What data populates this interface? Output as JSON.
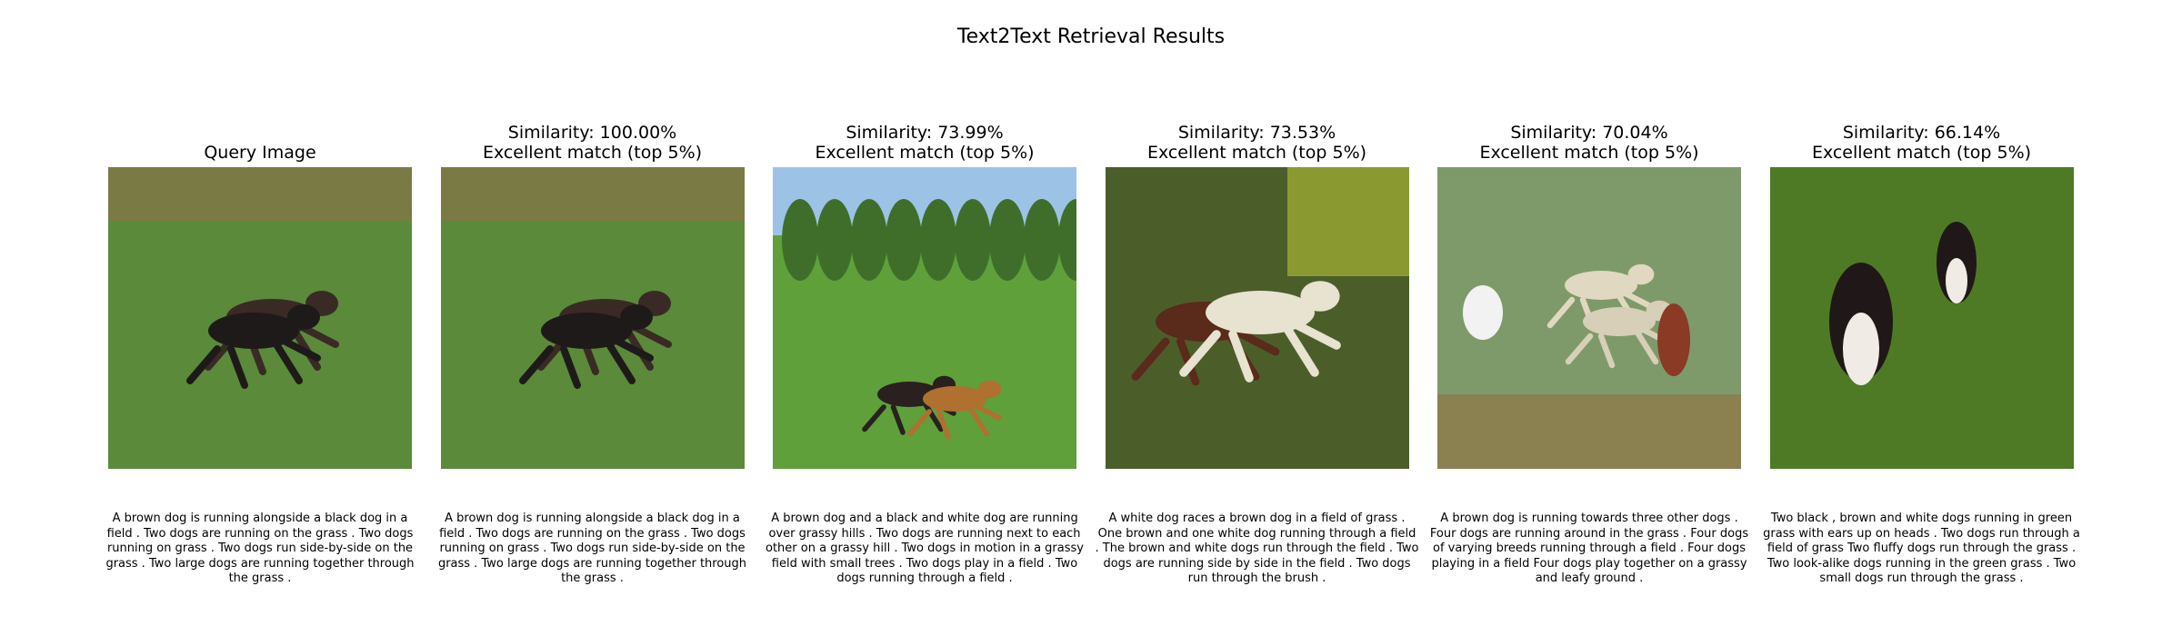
{
  "title": "Text2Text Retrieval Results",
  "panels": [
    {
      "title": [
        "Query Image"
      ],
      "caption": "A brown dog is running alongside a black dog in a field . Two dogs are running on the grass . Two dogs running on grass . Two dogs run side-by-side on the grass . Two large dogs are running together through the grass ."
    },
    {
      "title": [
        "Similarity: 100.00%",
        "Excellent match (top 5%)"
      ],
      "caption": "A brown dog is running alongside a black dog in a field . Two dogs are running on the grass . Two dogs running on grass . Two dogs run side-by-side on the grass . Two large dogs are running together through the grass ."
    },
    {
      "title": [
        "Similarity: 73.99%",
        "Excellent match (top 5%)"
      ],
      "caption": "A brown dog and a black and white dog are running over grassy hills . Two dogs are running next to each other on a grassy hill . Two dogs in motion in a grassy field with small trees . Two dogs play in a field . Two dogs running through a field ."
    },
    {
      "title": [
        "Similarity: 73.53%",
        "Excellent match (top 5%)"
      ],
      "caption": "A white dog races a brown dog in a field of grass . One brown and one white dog running through a field . The brown and white dogs run through the field . Two dogs are running side by side in the field . Two dogs run through the brush ."
    },
    {
      "title": [
        "Similarity: 70.04%",
        "Excellent match (top 5%)"
      ],
      "caption": "A brown dog is running towards three other dogs . Four dogs are running around in the grass . Four dogs of varying breeds running through a field . Four dogs playing in a field Four dogs play together on a grassy and leafy ground ."
    },
    {
      "title": [
        "Similarity: 66.14%",
        "Excellent match (top 5%)"
      ],
      "caption": "Two black , brown and white dogs running in green grass with ears up on heads . Two dogs run through a field of grass Two fluffy dogs run through the grass . Two look-alike dogs running in the green grass . Two small dogs run through the grass ."
    }
  ]
}
